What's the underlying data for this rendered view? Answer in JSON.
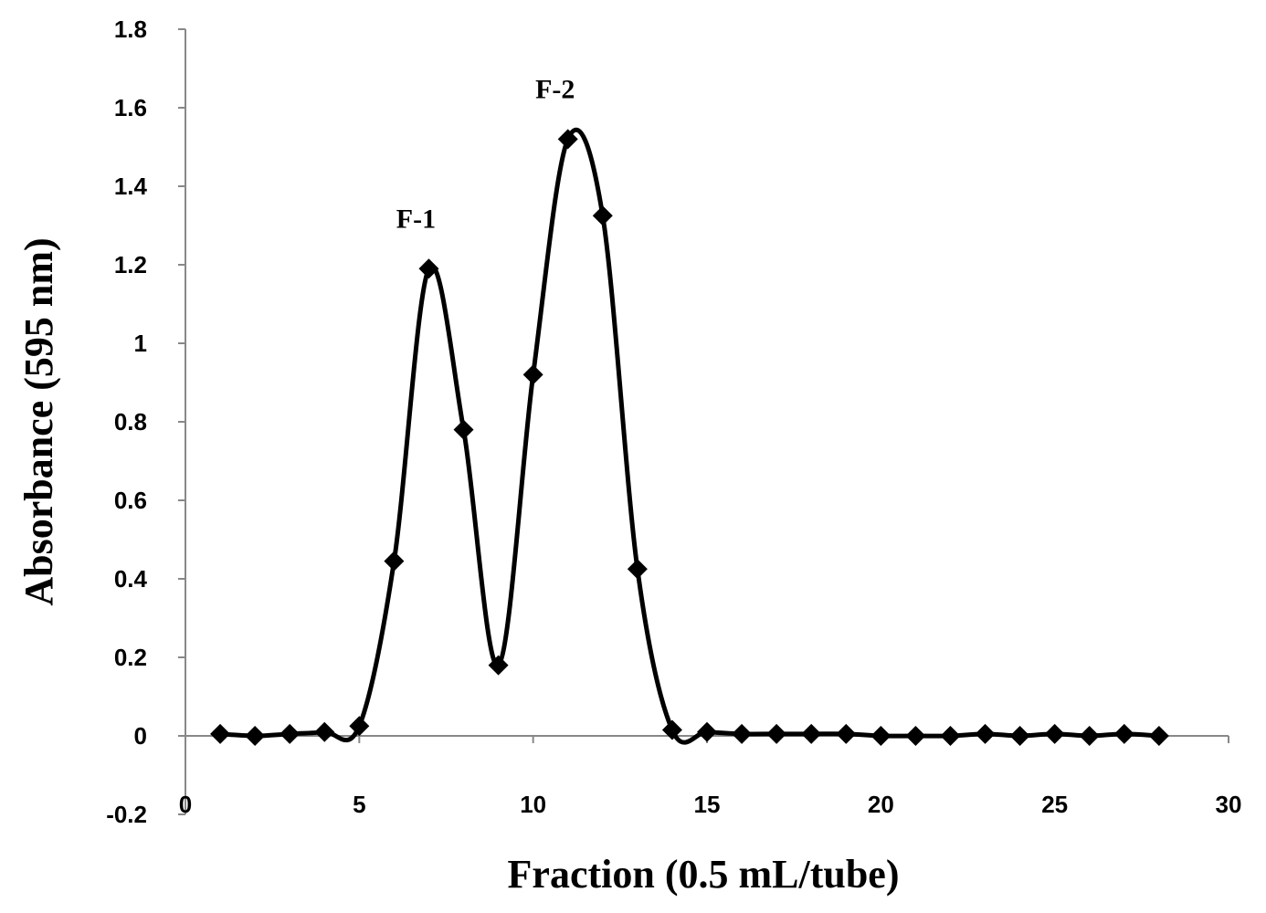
{
  "chart_data": {
    "type": "scatter",
    "xlabel": "Fraction (0.5 mL/tube)",
    "ylabel": "Absorbance (595 nm)",
    "xlim": [
      0,
      30
    ],
    "ylim": [
      -0.2,
      1.8
    ],
    "x_ticks": [
      0,
      5,
      10,
      15,
      20,
      25,
      30
    ],
    "x_tick_labels": [
      "0",
      "5",
      "10",
      "15",
      "20",
      "25",
      "30"
    ],
    "y_ticks": [
      -0.2,
      0,
      0.2,
      0.4,
      0.6,
      0.8,
      1.0,
      1.2,
      1.4,
      1.6,
      1.8
    ],
    "y_tick_labels": [
      "-0.2",
      "0",
      "0.2",
      "0.4",
      "0.6",
      "0.8",
      "1",
      "1.2",
      "1.4",
      "1.6",
      "1.8"
    ],
    "grid": false,
    "legend": "none",
    "line_style": "smooth line with diamond markers",
    "color": "#000000",
    "series": [
      {
        "x": [
          1,
          2,
          3,
          4,
          5,
          6,
          7,
          8,
          9,
          10,
          11,
          12,
          13,
          14,
          15,
          16,
          17,
          18,
          19,
          20,
          21,
          22,
          23,
          24,
          25,
          26,
          27,
          28
        ],
        "y": [
          0.005,
          0.0,
          0.005,
          0.01,
          0.025,
          0.445,
          1.19,
          0.78,
          0.18,
          0.92,
          1.52,
          1.325,
          0.425,
          0.015,
          0.01,
          0.005,
          0.005,
          0.005,
          0.005,
          0.0,
          0.0,
          0.0,
          0.005,
          0.0,
          0.005,
          0.0,
          0.005,
          0.0
        ]
      }
    ],
    "annotations": [
      {
        "text": "F-1",
        "x": 7,
        "y": 1.19
      },
      {
        "text": "F-2",
        "x": 11,
        "y": 1.52
      }
    ]
  }
}
